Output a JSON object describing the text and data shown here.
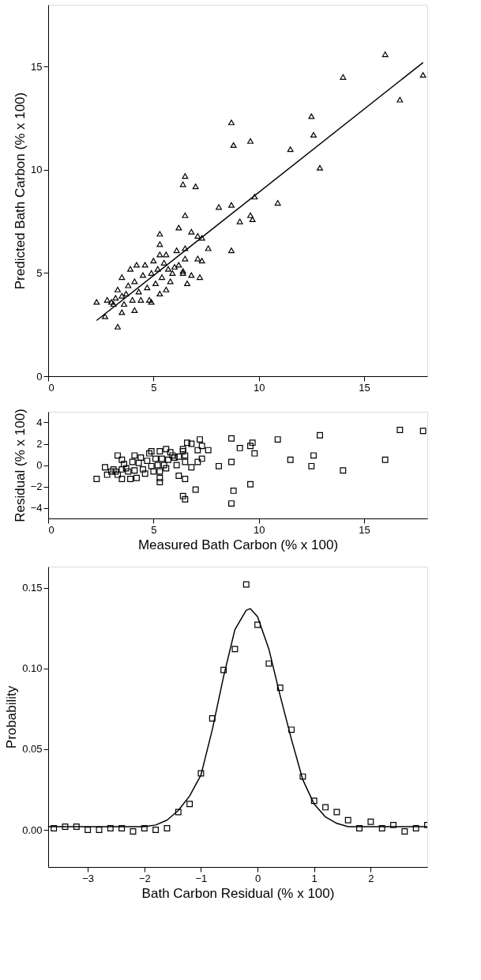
{
  "chart_data": [
    {
      "type": "scatter",
      "ylabel": "Predicted Bath Carbon (% x 100)",
      "xlim": [
        0,
        18
      ],
      "ylim": [
        0,
        18
      ],
      "xticks": [
        0,
        5,
        10,
        15
      ],
      "yticks": [
        0,
        5,
        10,
        15
      ],
      "grid": false,
      "series": [
        {
          "marker": "triangle",
          "color": "#000000",
          "x": [
            2.3,
            2.7,
            3.3,
            3.5,
            4.1,
            5.3,
            5.3,
            6.5,
            6.4,
            7.0,
            6.5,
            6.2,
            6.8,
            7.1,
            7.3,
            7.6,
            6.1,
            6.5,
            7.1,
            7.3,
            6.5,
            6.4,
            6.6,
            6.8,
            7.2,
            5.6,
            5.3,
            8.1,
            8.7,
            8.7,
            8.8,
            8.7,
            9.6,
            9.1,
            9.6,
            9.7,
            9.8,
            10.9,
            11.5,
            12.5,
            12.6,
            12.9,
            14.0,
            16.0,
            16.7,
            17.8,
            2.8,
            3.0,
            3.2,
            3.3,
            3.5,
            3.5,
            3.7,
            3.8,
            3.9,
            4.0,
            4.1,
            4.2,
            4.3,
            4.4,
            4.5,
            4.6,
            4.7,
            4.8,
            4.9,
            5.0,
            5.1,
            5.2,
            5.3,
            5.4,
            5.5,
            5.6,
            5.7,
            5.8,
            5.9,
            6.0,
            6.2,
            6.4,
            3.1,
            3.6,
            4.9
          ],
          "values": [
            3.6,
            2.9,
            2.4,
            3.1,
            3.2,
            6.9,
            6.4,
            9.7,
            9.3,
            9.2,
            7.8,
            7.2,
            7.0,
            6.8,
            6.7,
            6.2,
            6.1,
            6.2,
            5.7,
            5.6,
            5.7,
            5.0,
            4.5,
            4.9,
            4.8,
            4.2,
            4.0,
            8.2,
            8.3,
            12.3,
            11.2,
            6.1,
            11.4,
            7.5,
            7.8,
            7.6,
            8.7,
            8.4,
            11.0,
            12.6,
            11.7,
            10.1,
            14.5,
            15.6,
            13.4,
            14.6,
            3.7,
            3.6,
            3.8,
            4.2,
            4.8,
            3.9,
            4.0,
            4.4,
            5.2,
            3.7,
            4.6,
            5.4,
            4.1,
            3.7,
            4.9,
            5.4,
            4.3,
            3.7,
            5.0,
            5.6,
            4.5,
            5.2,
            5.9,
            4.8,
            5.5,
            5.9,
            5.2,
            4.6,
            5.0,
            5.3,
            5.4,
            5.1,
            3.5,
            3.5,
            3.6
          ]
        },
        {
          "type": "line",
          "line_style": "solid",
          "color": "#000000",
          "x": [
            2.3,
            17.8
          ],
          "values": [
            2.7,
            15.2
          ]
        }
      ]
    },
    {
      "type": "scatter",
      "xlabel": "Measured Bath Carbon (% x 100)",
      "ylabel": "Residual (% x 100)",
      "xlim": [
        0,
        18
      ],
      "ylim": [
        -5,
        5
      ],
      "xticks": [
        0,
        5,
        10,
        15
      ],
      "yticks": [
        -4,
        -2,
        0,
        2,
        4
      ],
      "grid": false,
      "series": [
        {
          "marker": "square",
          "color": "#000000",
          "x": [
            2.3,
            2.7,
            3.3,
            3.5,
            4.1,
            5.3,
            5.3,
            6.5,
            6.4,
            7.0,
            6.5,
            6.2,
            6.8,
            7.1,
            7.3,
            7.6,
            6.1,
            6.5,
            7.1,
            7.3,
            6.5,
            6.4,
            6.6,
            6.8,
            7.2,
            5.6,
            5.3,
            8.1,
            8.7,
            8.7,
            8.8,
            8.7,
            9.6,
            9.1,
            9.6,
            9.7,
            9.8,
            10.9,
            11.5,
            12.5,
            12.6,
            12.9,
            14.0,
            16.0,
            16.7,
            17.8,
            2.8,
            3.0,
            3.2,
            3.3,
            3.5,
            3.5,
            3.7,
            3.8,
            3.9,
            4.0,
            4.1,
            4.2,
            4.3,
            4.4,
            4.5,
            4.6,
            4.7,
            4.8,
            4.9,
            5.0,
            5.1,
            5.2,
            5.3,
            5.4,
            5.5,
            5.6,
            5.7,
            5.8,
            5.9,
            6.0,
            6.2,
            6.4,
            3.1,
            3.6,
            4.9
          ],
          "values": [
            -1.3,
            -0.2,
            0.9,
            0.5,
            0.9,
            -1.6,
            -1.2,
            -3.2,
            -2.9,
            -2.3,
            -1.3,
            -1.0,
            -0.2,
            0.3,
            0.6,
            1.4,
            0.0,
            0.3,
            1.4,
            1.8,
            0.9,
            1.5,
            2.1,
            2.0,
            2.4,
            1.5,
            1.3,
            -0.1,
            0.3,
            -3.6,
            -2.4,
            2.5,
            -1.8,
            1.6,
            1.8,
            2.1,
            1.1,
            2.4,
            0.5,
            -0.1,
            0.9,
            2.8,
            -0.5,
            0.5,
            3.3,
            3.2,
            -0.9,
            -0.6,
            -0.6,
            -0.9,
            -1.3,
            -0.4,
            -0.3,
            -0.6,
            -1.3,
            0.3,
            -0.5,
            -1.2,
            0.2,
            0.7,
            -0.4,
            -0.8,
            0.4,
            1.1,
            -0.1,
            -0.6,
            0.6,
            0.0,
            -0.6,
            0.6,
            0.0,
            -0.3,
            0.5,
            1.2,
            0.9,
            0.7,
            0.8,
            1.3,
            -0.4,
            0.1,
            1.3
          ]
        }
      ]
    },
    {
      "type": "scatter",
      "xlabel": "Bath Carbon Residual (% x 100)",
      "ylabel": "Probability",
      "xlim": [
        -3.7,
        3.0
      ],
      "ylim": [
        -0.023,
        0.163
      ],
      "xticks": [
        -3,
        -2,
        -1,
        0,
        1,
        2
      ],
      "yticks": [
        {
          "value": 0,
          "label": "0.00"
        },
        {
          "value": 0.05,
          "label": "0.05"
        },
        {
          "value": 0.1,
          "label": "0.10"
        },
        0.15
      ],
      "grid": false,
      "series": [
        {
          "marker": "square",
          "color": "#000000",
          "x": [
            -3.6,
            -3.4,
            -3.2,
            -3.0,
            -2.8,
            -2.6,
            -2.4,
            -2.2,
            -2.0,
            -1.8,
            -1.6,
            -1.4,
            -1.2,
            -1.0,
            -0.8,
            -0.6,
            -0.4,
            -0.2,
            0.0,
            0.2,
            0.4,
            0.6,
            0.8,
            1.0,
            1.2,
            1.4,
            1.6,
            1.8,
            2.0,
            2.2,
            2.4,
            2.6,
            2.8,
            3.0
          ],
          "values": [
            0.001,
            0.002,
            0.002,
            0.0,
            0.0,
            0.001,
            0.001,
            -0.001,
            0.001,
            0.0,
            0.001,
            0.011,
            0.016,
            0.035,
            0.069,
            0.099,
            0.112,
            0.152,
            0.127,
            0.103,
            0.088,
            0.062,
            0.033,
            0.018,
            0.014,
            0.011,
            0.006,
            0.001,
            0.005,
            0.001,
            0.003,
            -0.001,
            0.001,
            0.003
          ]
        },
        {
          "type": "line",
          "line_style": "solid",
          "color": "#000000",
          "x": [
            -3.7,
            -2.0,
            -1.8,
            -1.6,
            -1.4,
            -1.2,
            -1.0,
            -0.8,
            -0.6,
            -0.4,
            -0.2,
            -0.13,
            0.0,
            0.2,
            0.4,
            0.6,
            0.8,
            1.0,
            1.2,
            1.4,
            1.6,
            2.0,
            3.0
          ],
          "values": [
            0.002,
            0.002,
            0.003,
            0.006,
            0.012,
            0.021,
            0.034,
            0.062,
            0.095,
            0.124,
            0.136,
            0.137,
            0.132,
            0.112,
            0.083,
            0.056,
            0.031,
            0.016,
            0.008,
            0.004,
            0.002,
            0.002,
            0.002
          ]
        }
      ]
    }
  ]
}
